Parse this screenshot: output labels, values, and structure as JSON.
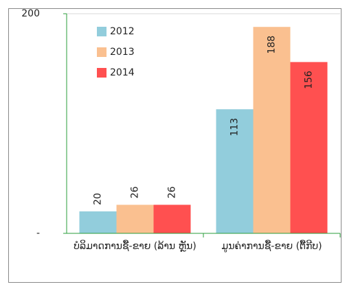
{
  "chart_data": {
    "type": "bar",
    "categories": [
      "ບໍລິມາດການຊື້-ຂາຍ (ລ້ານ ຫຼັນ)",
      "ມູນຄ່າການຊື້-ຂາຍ (ຕື້ກີບ)"
    ],
    "series": [
      {
        "name": "2012",
        "color": "#92cddc",
        "values": [
          20,
          113
        ]
      },
      {
        "name": "2013",
        "color": "#fac090",
        "values": [
          26,
          188
        ]
      },
      {
        "name": "2014",
        "color": "#ff5050",
        "values": [
          26,
          156
        ]
      }
    ],
    "ylim": [
      0,
      200
    ],
    "yticks": [
      {
        "value": 0,
        "label": "-"
      },
      200
    ],
    "legend": "upper-left"
  }
}
